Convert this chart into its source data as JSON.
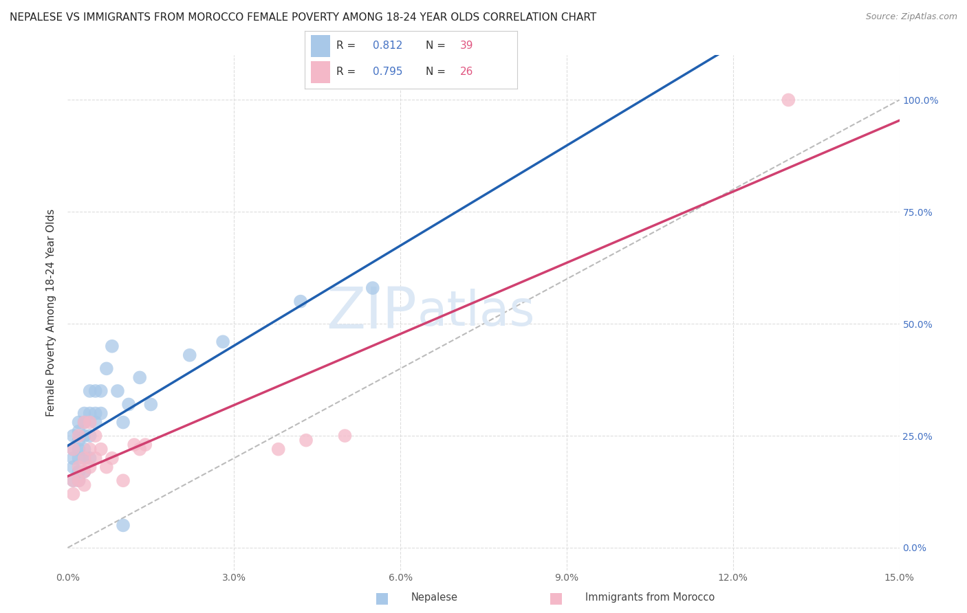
{
  "title": "NEPALESE VS IMMIGRANTS FROM MOROCCO FEMALE POVERTY AMONG 18-24 YEAR OLDS CORRELATION CHART",
  "source": "Source: ZipAtlas.com",
  "ylabel": "Female Poverty Among 18-24 Year Olds",
  "xlim": [
    0.0,
    0.15
  ],
  "ylim": [
    -0.05,
    1.1
  ],
  "xticks": [
    0.0,
    0.03,
    0.06,
    0.09,
    0.12,
    0.15
  ],
  "xticklabels": [
    "0.0%",
    "3.0%",
    "6.0%",
    "9.0%",
    "12.0%",
    "15.0%"
  ],
  "yticks_right": [
    0.0,
    0.25,
    0.5,
    0.75,
    1.0
  ],
  "yticklabels_right": [
    "0.0%",
    "25.0%",
    "50.0%",
    "75.0%",
    "100.0%"
  ],
  "watermark": "ZIPatlas",
  "nepalese_color": "#a8c8e8",
  "morocco_color": "#f4b8c8",
  "nepalese_R": "0.812",
  "nepalese_N": "39",
  "morocco_R": "0.795",
  "morocco_N": "26",
  "nepalese_x": [
    0.001,
    0.001,
    0.001,
    0.001,
    0.001,
    0.002,
    0.002,
    0.002,
    0.002,
    0.002,
    0.002,
    0.002,
    0.003,
    0.003,
    0.003,
    0.003,
    0.003,
    0.003,
    0.004,
    0.004,
    0.004,
    0.004,
    0.005,
    0.005,
    0.005,
    0.006,
    0.006,
    0.007,
    0.008,
    0.009,
    0.01,
    0.011,
    0.013,
    0.015,
    0.022,
    0.028,
    0.042,
    0.055,
    0.01
  ],
  "nepalese_y": [
    0.15,
    0.18,
    0.2,
    0.22,
    0.25,
    0.15,
    0.17,
    0.2,
    0.22,
    0.24,
    0.26,
    0.28,
    0.17,
    0.2,
    0.22,
    0.25,
    0.28,
    0.3,
    0.2,
    0.25,
    0.3,
    0.35,
    0.3,
    0.35,
    0.28,
    0.3,
    0.35,
    0.4,
    0.45,
    0.35,
    0.28,
    0.32,
    0.38,
    0.32,
    0.43,
    0.46,
    0.55,
    0.58,
    0.05
  ],
  "morocco_x": [
    0.001,
    0.001,
    0.001,
    0.002,
    0.002,
    0.002,
    0.003,
    0.003,
    0.003,
    0.003,
    0.004,
    0.004,
    0.004,
    0.005,
    0.005,
    0.006,
    0.007,
    0.008,
    0.01,
    0.012,
    0.013,
    0.014,
    0.038,
    0.043,
    0.05,
    0.13
  ],
  "morocco_y": [
    0.12,
    0.15,
    0.22,
    0.15,
    0.18,
    0.25,
    0.14,
    0.17,
    0.2,
    0.28,
    0.18,
    0.22,
    0.28,
    0.2,
    0.25,
    0.22,
    0.18,
    0.2,
    0.15,
    0.23,
    0.22,
    0.23,
    0.22,
    0.24,
    0.25,
    1.0
  ],
  "background_color": "#ffffff",
  "title_fontsize": 11,
  "axis_label_fontsize": 11,
  "tick_fontsize": 10,
  "watermark_fontsize": 60,
  "watermark_color": "#dce8f5",
  "grid_color": "#dddddd",
  "nepalese_line_color": "#2060b0",
  "morocco_line_color": "#d04070",
  "ref_line_color": "#bbbbbb",
  "legend_nepalese_color": "#a8c8e8",
  "legend_morocco_color": "#f4b8c8",
  "legend_R_color": "#4472c4",
  "legend_N_color": "#e05580"
}
